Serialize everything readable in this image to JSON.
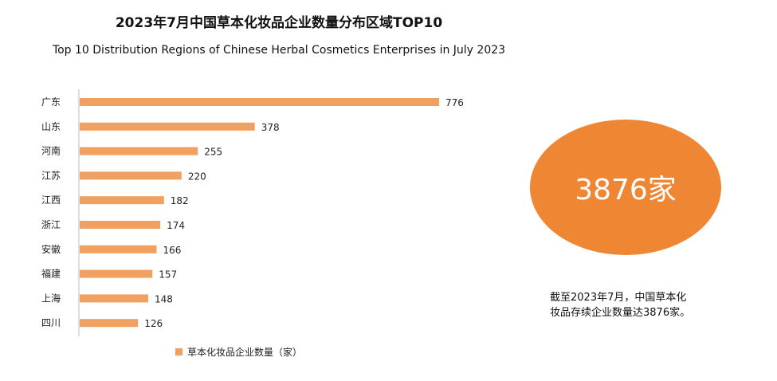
{
  "chart_data": {
    "type": "bar",
    "orientation": "horizontal",
    "title": "2023年7月中国草本化妆品企业数量分布区域TOP10",
    "subtitle": "Top 10 Distribution Regions of Chinese Herbal Cosmetics Enterprises in July 2023",
    "categories": [
      "广东",
      "山东",
      "河南",
      "江苏",
      "江西",
      "浙江",
      "安徽",
      "福建",
      "上海",
      "四川"
    ],
    "series": [
      {
        "name": "草本化妆品企业数量（家）",
        "values": [
          776,
          378,
          255,
          220,
          182,
          174,
          166,
          157,
          148,
          126
        ]
      }
    ],
    "xlim": [
      0,
      776
    ],
    "grid": false,
    "legend_position": "bottom",
    "bar_color": "#f0a060"
  },
  "highlight": {
    "value_text": "3876家",
    "color": "#ef8633"
  },
  "note": {
    "line1": "截至2023年7月，中国草本化",
    "line2": "妆品存续企业数量达3876家。"
  }
}
